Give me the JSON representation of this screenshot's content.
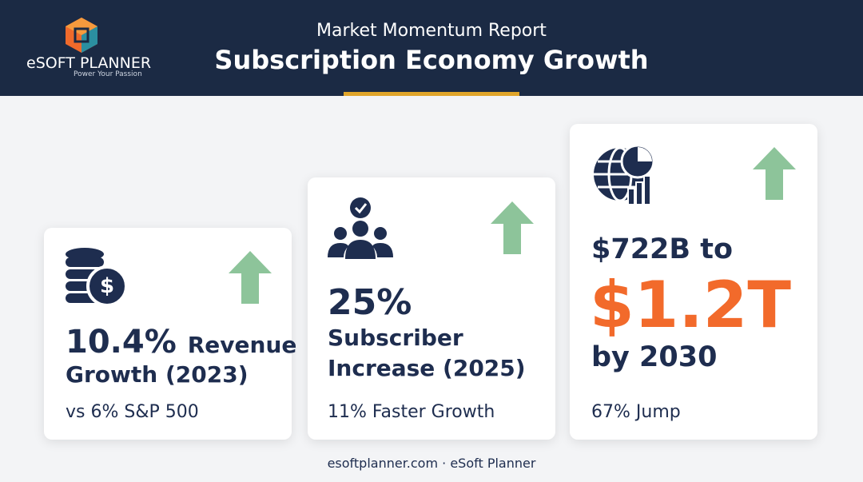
{
  "logo": {
    "name": "eSOFT PLANNER",
    "tagline": "Power Your Passion"
  },
  "header": {
    "kicker": "Market Momentum Report",
    "title": "Subscription Economy Growth"
  },
  "cards": [
    {
      "highlight": "10.4%",
      "headline_rest": "Revenue",
      "headline_line2": "Growth (2023)",
      "note": "vs 6% S&P 500"
    },
    {
      "highlight": "25%",
      "headline_line1": "Subscriber",
      "headline_line2": "Increase (2025)",
      "note": "11% Faster Growth"
    },
    {
      "headline_line1": "$722B to",
      "highlight": "$1.2T",
      "headline_line2": "by 2030",
      "note": "67% Jump"
    }
  ],
  "footer": {
    "source": "esoftplanner.com · eSoft Planner"
  }
}
